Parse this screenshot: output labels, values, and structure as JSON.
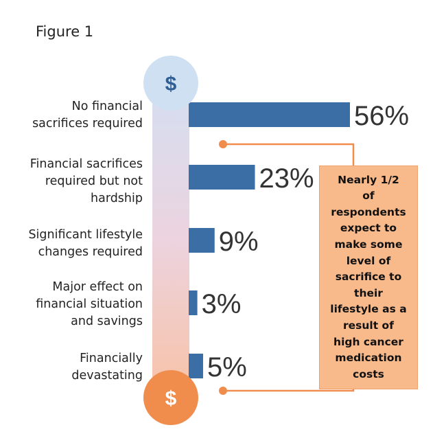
{
  "figure_label": "Figure 1",
  "colors": {
    "bar": "#3a6ea5",
    "top_circle": "#cfe0f2",
    "bottom_circle": "#f08c4c",
    "callout_fill": "#f8b98b",
    "connector": "#f08c4c"
  },
  "icons": {
    "top": "dollar-icon",
    "bottom": "dollar-icon"
  },
  "symbols": {
    "top": "$",
    "bottom": "$"
  },
  "callout": {
    "lines": [
      "Nearly 1/2",
      "of",
      "respondents",
      "expect to",
      "make some",
      "level of",
      "sacrifice to",
      "their",
      "lifestyle as a",
      "result of",
      "high cancer",
      "medication",
      "costs"
    ]
  },
  "chart_data": {
    "type": "bar",
    "orientation": "horizontal",
    "categories": [
      [
        "No financial",
        "sacrifices  required"
      ],
      [
        "Financial sacrifices",
        "required but not",
        "hardship"
      ],
      [
        "Significant lifestyle",
        "changes required"
      ],
      [
        "Major effect on",
        "financial situation",
        "and savings"
      ],
      [
        "Financially",
        "devastating"
      ]
    ],
    "values": [
      56,
      23,
      9,
      3,
      5
    ],
    "value_labels": [
      "56%",
      "23%",
      "9%",
      "3%",
      "5%"
    ],
    "xlim": [
      0,
      56
    ],
    "grid": false,
    "legend": "none"
  }
}
